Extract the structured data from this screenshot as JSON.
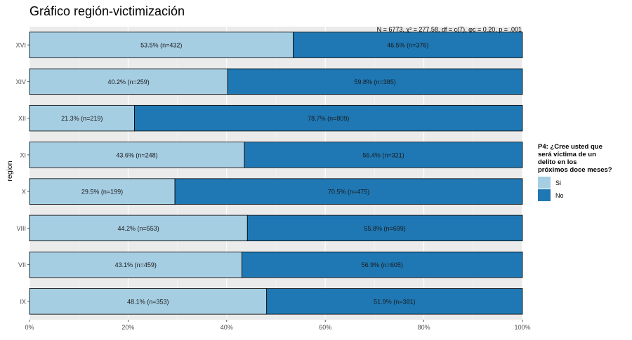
{
  "chart_data": {
    "type": "bar",
    "stacked": true,
    "orientation": "horizontal",
    "title": "Gráfico región-victimización",
    "annotation": "N = 6773, χ² = 277.58, df = c(7), φc = 0.20, p = .001",
    "ylabel": "region",
    "xlabel": "",
    "categories": [
      "XVI",
      "XIV",
      "XII",
      "XI",
      "X",
      "VIII",
      "VII",
      "IX"
    ],
    "xlim": [
      0,
      100
    ],
    "x_ticks": [
      "0%",
      "20%",
      "40%",
      "60%",
      "80%",
      "100%"
    ],
    "grid": true,
    "legend_position": "right",
    "legend_title": "P4: ¿Cree usted que será víctima de un delito en los próximos doce meses?",
    "series": [
      {
        "name": "Si",
        "color": "#a6cee3",
        "values": [
          53.5,
          40.2,
          21.3,
          43.6,
          29.5,
          44.2,
          43.1,
          48.1
        ],
        "labels": [
          "53.5% (n=432)",
          "40.2% (n=259)",
          "21.3% (n=219)",
          "43.6% (n=248)",
          "29.5% (n=199)",
          "44.2% (n=553)",
          "43.1% (n=459)",
          "48.1% (n=353)"
        ]
      },
      {
        "name": "No",
        "color": "#1f78b4",
        "values": [
          46.5,
          59.8,
          78.7,
          56.4,
          70.5,
          55.8,
          56.9,
          51.9
        ],
        "labels": [
          "46.5% (n=376)",
          "59.8% (n=385)",
          "78.7% (n=809)",
          "56.4% (n=321)",
          "70.5% (n=475)",
          "55.8% (n=699)",
          "56.9% (n=605)",
          "51.9% (n=381)"
        ]
      }
    ]
  }
}
